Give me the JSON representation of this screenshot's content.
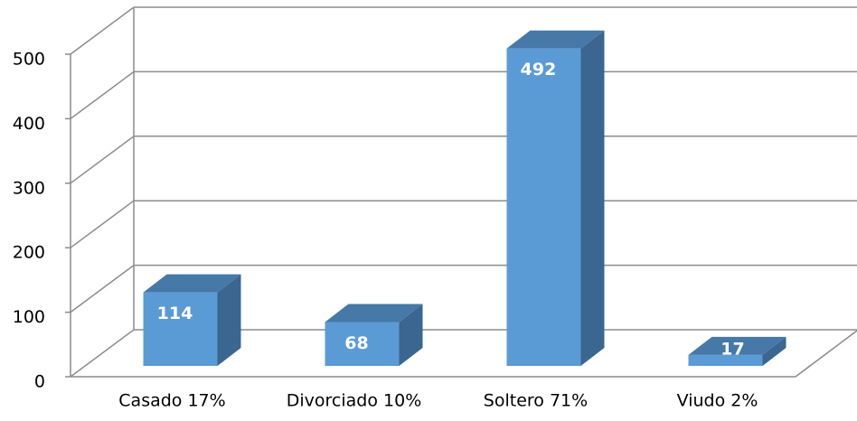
{
  "chart_data": {
    "type": "bar3d",
    "categories": [
      "Casado 17%",
      "Divorciado 10%",
      "Soltero 71%",
      "Viudo 2%"
    ],
    "values": [
      114,
      68,
      492,
      17
    ],
    "color": "#5b9bd5",
    "ylim": [
      0,
      500
    ],
    "yticks": [
      0,
      100,
      200,
      300,
      400,
      500
    ],
    "grid": true
  }
}
